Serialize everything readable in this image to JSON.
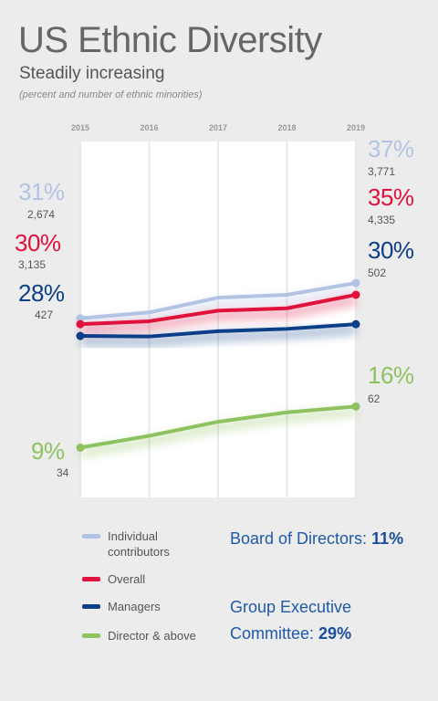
{
  "header": {
    "title": "US Ethnic Diversity",
    "subtitle": "Steadily increasing",
    "note": "(percent and number of ethnic minorities)"
  },
  "chart_data": {
    "type": "line",
    "x": [
      "2015",
      "2016",
      "2017",
      "2018",
      "2019"
    ],
    "ylim": [
      0,
      45
    ],
    "series": [
      {
        "name": "Individual contributors",
        "color": "#b3c3e3",
        "values": [
          31,
          32,
          34.5,
          35,
          37
        ],
        "start_label": "31%",
        "start_count": "2,674",
        "end_label": "37%",
        "end_count": "3,771"
      },
      {
        "name": "Overall",
        "color": "#e0123c",
        "values": [
          30,
          30.5,
          32.3,
          32.7,
          35
        ],
        "start_label": "30%",
        "start_count": "3,135",
        "end_label": "35%",
        "end_count": "4,335"
      },
      {
        "name": "Managers",
        "color": "#0c3f87",
        "values": [
          28,
          27.9,
          28.8,
          29.2,
          30
        ],
        "start_label": "28%",
        "start_count": "427",
        "end_label": "30%",
        "end_count": "502"
      },
      {
        "name": "Director & above",
        "color": "#8ec261",
        "values": [
          9,
          11,
          13.4,
          15,
          16
        ],
        "start_label": "9%",
        "start_count": "34",
        "end_label": "16%",
        "end_count": "62"
      }
    ]
  },
  "legend": {
    "items": [
      {
        "label": "Individual contributors",
        "color": "#b3c3e3"
      },
      {
        "label": "Overall",
        "color": "#e0123c"
      },
      {
        "label": "Managers",
        "color": "#0c3f87"
      },
      {
        "label": "Director & above",
        "color": "#8ec261"
      }
    ]
  },
  "stats": {
    "board_label": "Board of Directors:",
    "board_value": "11%",
    "gec_label": "Group Executive Committee:",
    "gec_value": "29%"
  }
}
